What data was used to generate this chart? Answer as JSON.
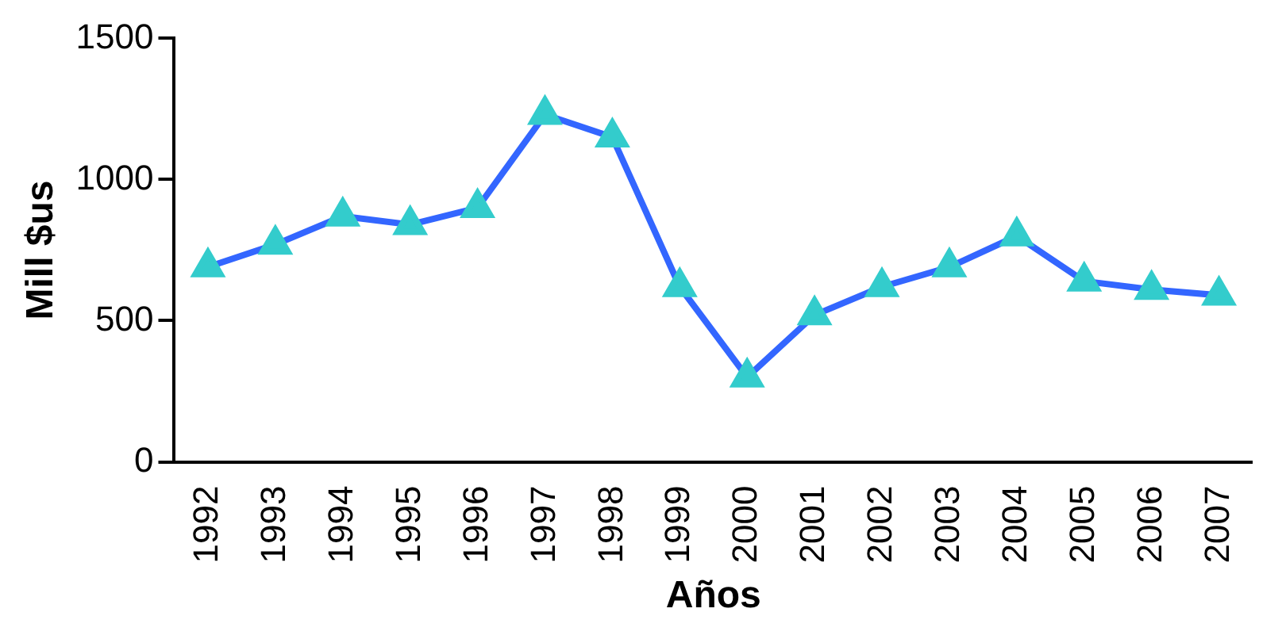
{
  "chart_data": {
    "type": "line",
    "xlabel": "Años",
    "ylabel": "Mill $us",
    "categories": [
      "1992",
      "1993",
      "1994",
      "1995",
      "1996",
      "1997",
      "1998",
      "1999",
      "2000",
      "2001",
      "2002",
      "2003",
      "2004",
      "2005",
      "2006",
      "2007"
    ],
    "series": [
      {
        "color": "#3366ff",
        "values": [
          690,
          770,
          870,
          840,
          900,
          1230,
          1150,
          620,
          300,
          520,
          620,
          690,
          800,
          640,
          610,
          590
        ]
      }
    ],
    "marker": "triangle",
    "ylim": [
      0,
      1500
    ],
    "yticks": [
      0,
      500,
      1000,
      1500
    ],
    "grid": false,
    "legend": false
  }
}
